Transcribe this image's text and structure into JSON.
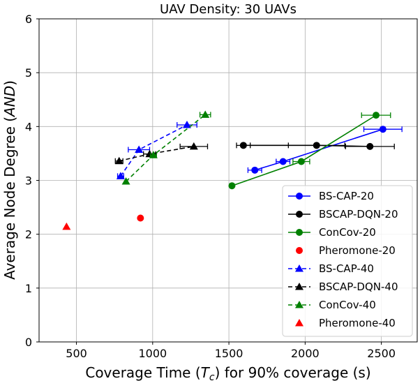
{
  "chart_data": {
    "type": "scatter",
    "title": "UAV Density: 30 UAVs",
    "xlabel": {
      "prefix": "Coverage Time (",
      "symbol": "T",
      "sub": "c",
      "suffix": ") for 90% coverage (s)"
    },
    "ylabel": {
      "prefix": "Average Node Degree (",
      "symbol": "AND",
      "suffix": ")"
    },
    "xlim": [
      255,
      2735
    ],
    "ylim": [
      0,
      6
    ],
    "xticks": [
      500,
      1000,
      1500,
      2000,
      2500
    ],
    "yticks": [
      0,
      1,
      2,
      3,
      4,
      5,
      6
    ],
    "grid": true,
    "legend_position": "lower-right",
    "series": [
      {
        "name": "BS-CAP-20",
        "color": "#0000ff",
        "marker": "circle",
        "line": "solid",
        "x": [
          1670,
          1855,
          2510
        ],
        "y": [
          3.19,
          3.35,
          3.95
        ],
        "xerr": [
          45,
          45,
          125
        ]
      },
      {
        "name": "BSCAP-DQN-20",
        "color": "#000000",
        "marker": "circle",
        "line": "solid",
        "x": [
          1595,
          2075,
          2425
        ],
        "y": [
          3.65,
          3.65,
          3.63
        ],
        "xerr": [
          45,
          185,
          160
        ]
      },
      {
        "name": "ConCov-20",
        "color": "#008000",
        "marker": "circle",
        "line": "solid",
        "x": [
          1520,
          1975,
          2465
        ],
        "y": [
          2.9,
          3.35,
          4.21
        ],
        "xerr": [
          0,
          55,
          95
        ]
      },
      {
        "name": "Pheromone-20",
        "color": "#ff0000",
        "marker": "circle",
        "line": "none",
        "x": [
          920
        ],
        "y": [
          2.3
        ],
        "xerr": [
          0
        ]
      },
      {
        "name": "BS-CAP-40",
        "color": "#0000ff",
        "marker": "triangle",
        "line": "dashed",
        "x": [
          790,
          910,
          1225
        ],
        "y": [
          3.08,
          3.57,
          4.03
        ],
        "xerr": [
          20,
          70,
          65
        ]
      },
      {
        "name": "BSCAP-DQN-40",
        "color": "#000000",
        "marker": "triangle",
        "line": "dashed",
        "x": [
          780,
          980,
          1270
        ],
        "y": [
          3.36,
          3.49,
          3.63
        ],
        "xerr": [
          25,
          40,
          90
        ]
      },
      {
        "name": "ConCov-40",
        "color": "#008000",
        "marker": "triangle",
        "line": "dashed",
        "x": [
          825,
          1005,
          1345
        ],
        "y": [
          2.98,
          3.47,
          4.22
        ],
        "xerr": [
          0,
          20,
          35
        ]
      },
      {
        "name": "Pheromone-40",
        "color": "#ff0000",
        "marker": "triangle",
        "line": "none",
        "x": [
          435
        ],
        "y": [
          2.14
        ],
        "xerr": [
          0
        ]
      }
    ]
  }
}
